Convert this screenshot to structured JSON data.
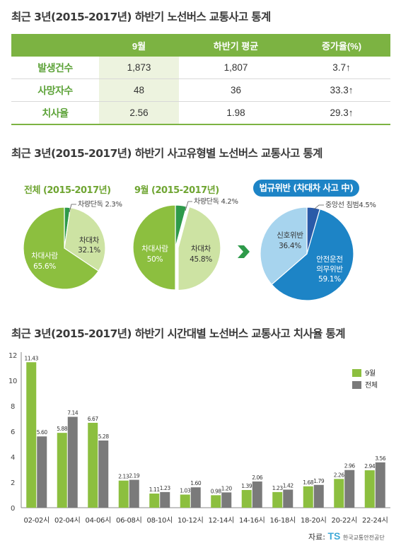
{
  "titles": {
    "section1": "최근 3년(2015-2017년) 하반기 노선버스 교통사고 통계",
    "section2": "최근 3년(2015-2017년) 하반기 사고유형별 노선버스 교통사고 통계",
    "section3": "최근 3년(2015-2017년) 하반기 시간대별 노선버스 교통사고 치사율 통계"
  },
  "summary_table": {
    "headers": [
      "",
      "9월",
      "하반기 평균",
      "증가율(%)"
    ],
    "rows": [
      {
        "label": "발생건수",
        "sep": "1,873",
        "avg": "1,807",
        "rate": "3.7↑"
      },
      {
        "label": "사망자수",
        "sep": "48",
        "avg": "36",
        "rate": "33.3↑"
      },
      {
        "label": "치사율",
        "sep": "2.56",
        "avg": "1.98",
        "rate": "29.3↑"
      }
    ]
  },
  "colors": {
    "green": "#8cbf3f",
    "light_green": "#cde3a3",
    "dark_green": "#2e9a4a",
    "blue": "#1d84c6",
    "light_blue": "#a7d4ee",
    "navy": "#2a5aa8",
    "gray": "#7a7a7a",
    "arrow": "#2e9a4a"
  },
  "pies": {
    "total": {
      "title": "전체 (2015-2017년)",
      "slices": [
        {
          "label": "차량단독",
          "value": 2.3,
          "text": "2.3%"
        },
        {
          "label": "차대차",
          "value": 32.1,
          "text": "32.1%"
        },
        {
          "label": "차대사람",
          "value": 65.6,
          "text": "65.6%"
        }
      ]
    },
    "sep": {
      "title": "9월 (2015-2017년)",
      "slices": [
        {
          "label": "차량단독",
          "value": 4.2,
          "text": "4.2%"
        },
        {
          "label": "차대차",
          "value": 45.8,
          "text": "45.8%"
        },
        {
          "label": "차대사람",
          "value": 50,
          "text": "50%"
        }
      ]
    },
    "violation": {
      "title": "법규위반 (차대차 사고 中)",
      "slices": [
        {
          "label": "중앙선 침범",
          "value": 4.5,
          "text": "4.5%"
        },
        {
          "label": "안전운전 의무위반",
          "line1": "안전운전",
          "line2": "의무위반",
          "value": 59.1,
          "text": "59.1%"
        },
        {
          "label": "신호위반",
          "value": 36.4,
          "text": "36.4%"
        }
      ]
    }
  },
  "chart_data": {
    "type": "bar",
    "title": "최근 3년(2015-2017년) 하반기 시간대별 노선버스 교통사고 치사율 통계",
    "categories": [
      "02-02시",
      "02-04시",
      "04-06시",
      "06-08시",
      "08-10시",
      "10-12시",
      "12-14시",
      "14-16시",
      "16-18시",
      "18-20시",
      "20-22시",
      "22-24시"
    ],
    "series": [
      {
        "name": "9월",
        "values": [
          11.43,
          5.88,
          6.67,
          2.13,
          1.11,
          1.03,
          0.98,
          1.39,
          1.23,
          1.68,
          2.26,
          2.94
        ]
      },
      {
        "name": "전체",
        "values": [
          5.6,
          7.14,
          5.28,
          2.19,
          1.23,
          1.6,
          1.2,
          2.06,
          1.42,
          1.79,
          2.96,
          3.56
        ]
      }
    ],
    "value_labels": [
      [
        "11.43",
        "5.88",
        "6.67",
        "2.13",
        "1.11",
        "1.03",
        "0.98",
        "1.39",
        "1.23",
        "1.68",
        "2.26",
        "2.94"
      ],
      [
        "5.60",
        "7.14",
        "5.28",
        "2.19",
        "1.23",
        "1.60",
        "1.20",
        "2.06",
        "1.42",
        "1.79",
        "2.96",
        "3.56"
      ]
    ],
    "yticks": [
      0,
      2,
      4,
      6,
      8,
      10,
      12
    ],
    "ylim": [
      0,
      12
    ],
    "legend_position": "right",
    "grid": false
  },
  "source": {
    "label": "자료:",
    "logo": "TS",
    "org": "한국교통안전공단"
  }
}
